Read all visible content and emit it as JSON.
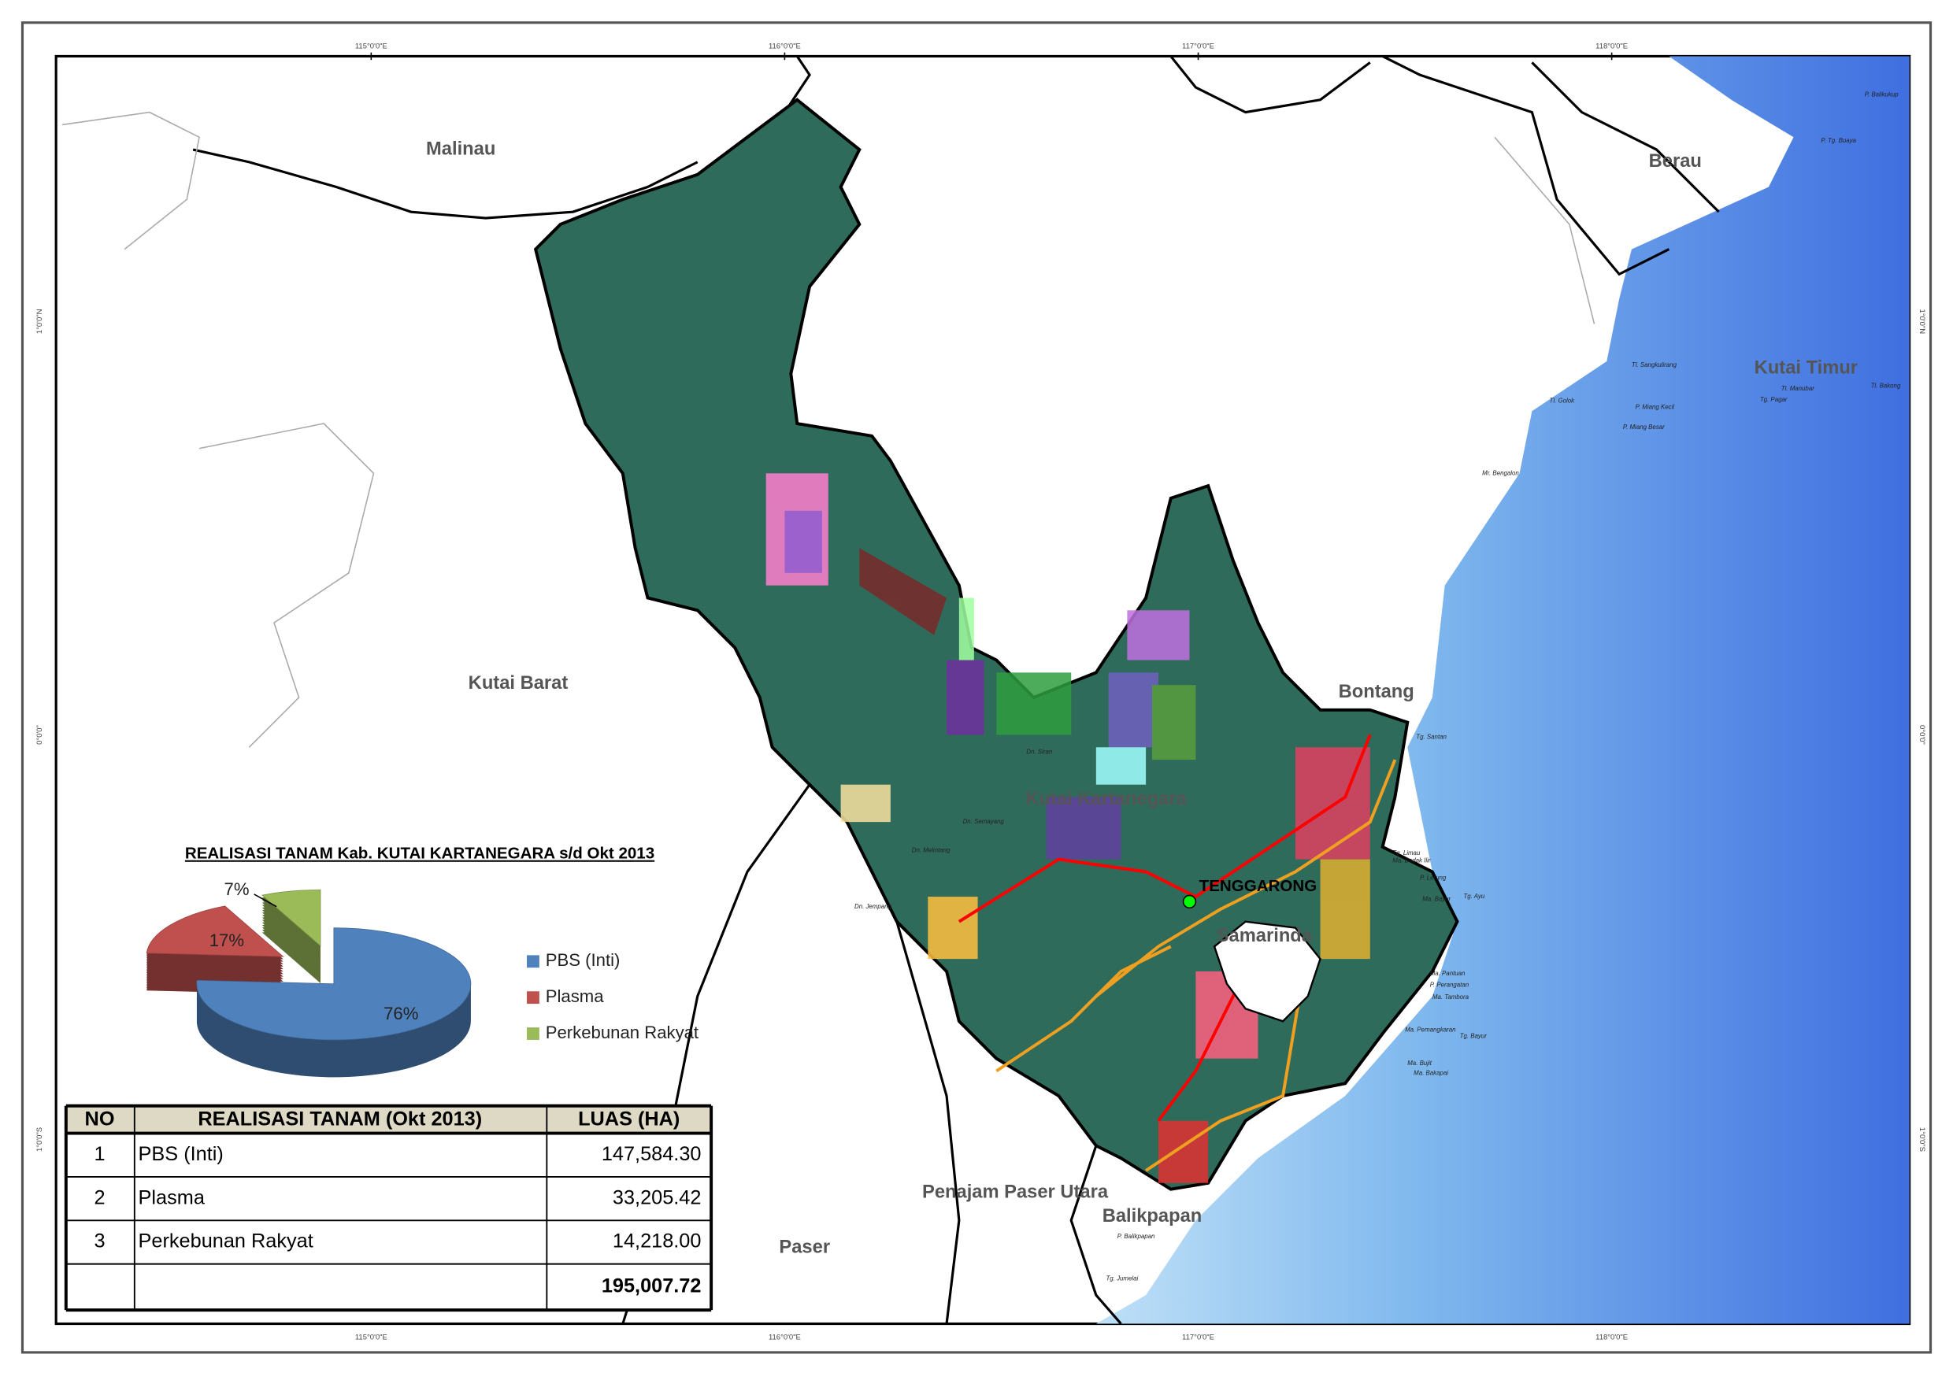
{
  "map": {
    "regions": [
      "Malinau",
      "Berau",
      "Kutai Timur",
      "Kutai Barat",
      "Bontang",
      "Kutai Kartanegara",
      "TENGGARONG",
      "Samarinda",
      "Penajam Paser Utara",
      "Balikpapan",
      "Paser"
    ],
    "longitudes": [
      "115°0'0\"E",
      "116°0'0\"E",
      "117°0'0\"E",
      "118°0'0\"E"
    ],
    "latitudes": [
      "1°0'0\"N",
      "0°0'0\"",
      "1°0'0\"S"
    ],
    "places": [
      "P. Balikukup",
      "P. Tg. Buaya",
      "Tl. Sangkulirang",
      "Tl. Golok",
      "P. Miang Kecil",
      "P. Miang Besar",
      "Tl. Manubar",
      "Tg. Pagar",
      "Tl. Bakong",
      "Mr. Bengalon",
      "Tg. Santan",
      "Tg. Limau",
      "Ma. Badak Ilir",
      "P. Lerung",
      "Ma. Bayur",
      "Tg. Ayu",
      "Ma. Pantuan",
      "P. Perangatan",
      "Ma. Tambora",
      "Ma. Pemangkaran",
      "Tg. Bayur",
      "Ma. Bujit",
      "Ma. Bakapai",
      "Dn. Siran",
      "Dn. Semayang",
      "Dn. Melintang",
      "Dn. Jempang",
      "P. Balikpapan",
      "Tg. Jumelai"
    ]
  },
  "chart_data": {
    "type": "pie",
    "title": "REALISASI TANAM Kab. KUTAI KARTANEGARA s/d Okt 2013",
    "categories": [
      "PBS (Inti)",
      "Plasma",
      "Perkebunan Rakyat"
    ],
    "values": [
      76,
      17,
      7
    ],
    "value_labels": [
      "76%",
      "17%",
      "7%"
    ],
    "colors": [
      "#4f81bd",
      "#c0504d",
      "#9bbb59"
    ]
  },
  "table": {
    "header": [
      "NO",
      "REALISASI TANAM (Okt 2013)",
      "LUAS (HA)"
    ],
    "rows": [
      [
        "1",
        "PBS (Inti)",
        "147,584.30"
      ],
      [
        "2",
        "Plasma",
        "33,205.42"
      ],
      [
        "3",
        "Perkebunan Rakyat",
        "14,218.00"
      ]
    ],
    "total": "195,007.72"
  }
}
